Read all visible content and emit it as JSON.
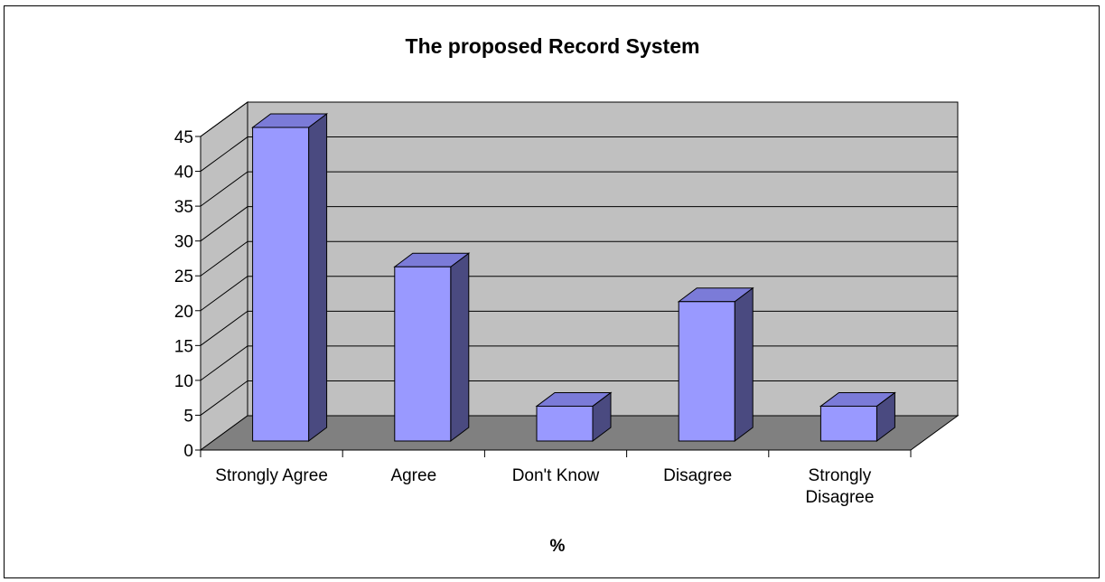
{
  "chart_data": {
    "type": "bar",
    "title": "The proposed Record System",
    "xlabel": "%",
    "ylabel": "",
    "categories": [
      "Strongly Agree",
      "Agree",
      "Don't Know",
      "Disagree",
      "Strongly Disagree"
    ],
    "category_lines": [
      [
        "Strongly Agree"
      ],
      [
        "Agree"
      ],
      [
        "Don't Know"
      ],
      [
        "Disagree"
      ],
      [
        "Strongly",
        "Disagree"
      ]
    ],
    "values": [
      45,
      25,
      5,
      20,
      5
    ],
    "ylim": [
      0,
      45
    ],
    "yticks": [
      0,
      5,
      10,
      15,
      20,
      25,
      30,
      35,
      40,
      45
    ],
    "grid": true,
    "legend": "none",
    "style": "3d-column",
    "colors": {
      "bar_front": "#9999ff",
      "bar_top": "#7b7bd8",
      "bar_side": "#4a4a80",
      "wall": "#c0c0c0",
      "floor": "#808080",
      "gridline": "#000000"
    }
  }
}
